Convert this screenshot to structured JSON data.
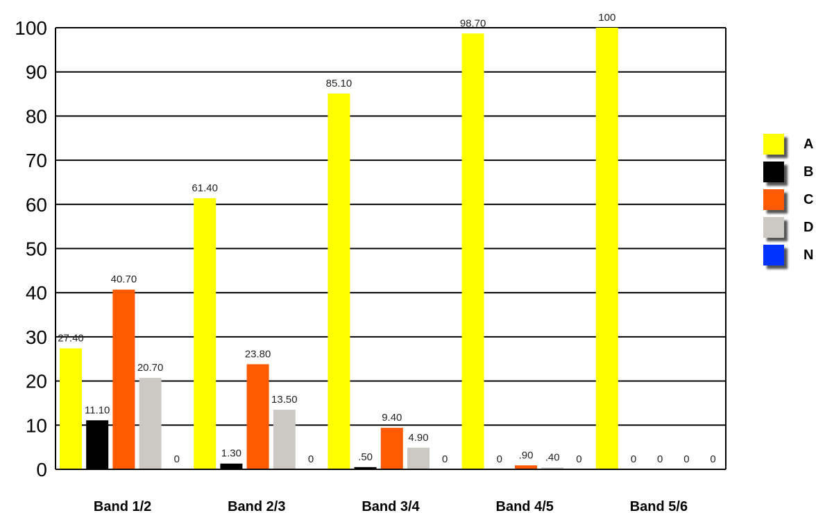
{
  "chart_data": {
    "type": "bar",
    "title": "",
    "xlabel": "",
    "ylabel": "",
    "ylim": [
      0,
      100
    ],
    "yticks": [
      0,
      10,
      20,
      30,
      40,
      50,
      60,
      70,
      80,
      90,
      100
    ],
    "ytick_labels": [
      "0",
      "10",
      "20",
      "30",
      "40",
      "50",
      "60",
      "70",
      "80",
      "90",
      "100"
    ],
    "grid": "horizontal",
    "legend_position": "right",
    "categories": [
      "Band 1/2",
      "Band 2/3",
      "Band 3/4",
      "Band 4/5",
      "Band 5/6"
    ],
    "series": [
      {
        "name": "A",
        "color": "#ffff00",
        "values": [
          27.4,
          61.4,
          85.1,
          98.7,
          100
        ],
        "labels": [
          "27.40",
          "61.40",
          "85.10",
          "98.70",
          "100"
        ]
      },
      {
        "name": "B",
        "color": "#000000",
        "values": [
          11.1,
          1.3,
          0.5,
          0,
          0
        ],
        "labels": [
          "11.10",
          "1.30",
          ".50",
          "0",
          "0"
        ]
      },
      {
        "name": "C",
        "color": "#ff5a00",
        "values": [
          40.7,
          23.8,
          9.4,
          0.9,
          0
        ],
        "labels": [
          "40.70",
          "23.80",
          "9.40",
          ".90",
          "0"
        ]
      },
      {
        "name": "D",
        "color": "#ccc8c3",
        "values": [
          20.7,
          13.5,
          4.9,
          0.4,
          0
        ],
        "labels": [
          "20.70",
          "13.50",
          "4.90",
          ".40",
          "0"
        ]
      },
      {
        "name": "N",
        "color": "#0033ff",
        "values": [
          0,
          0,
          0,
          0,
          0
        ],
        "labels": [
          "0",
          "0",
          "0",
          "0",
          "0"
        ]
      }
    ]
  },
  "legend": {
    "items": [
      {
        "label": "A",
        "color": "#ffff00"
      },
      {
        "label": "B",
        "color": "#000000"
      },
      {
        "label": "C",
        "color": "#ff5a00"
      },
      {
        "label": "D",
        "color": "#ccc8c3"
      },
      {
        "label": "N",
        "color": "#0033ff"
      }
    ]
  }
}
